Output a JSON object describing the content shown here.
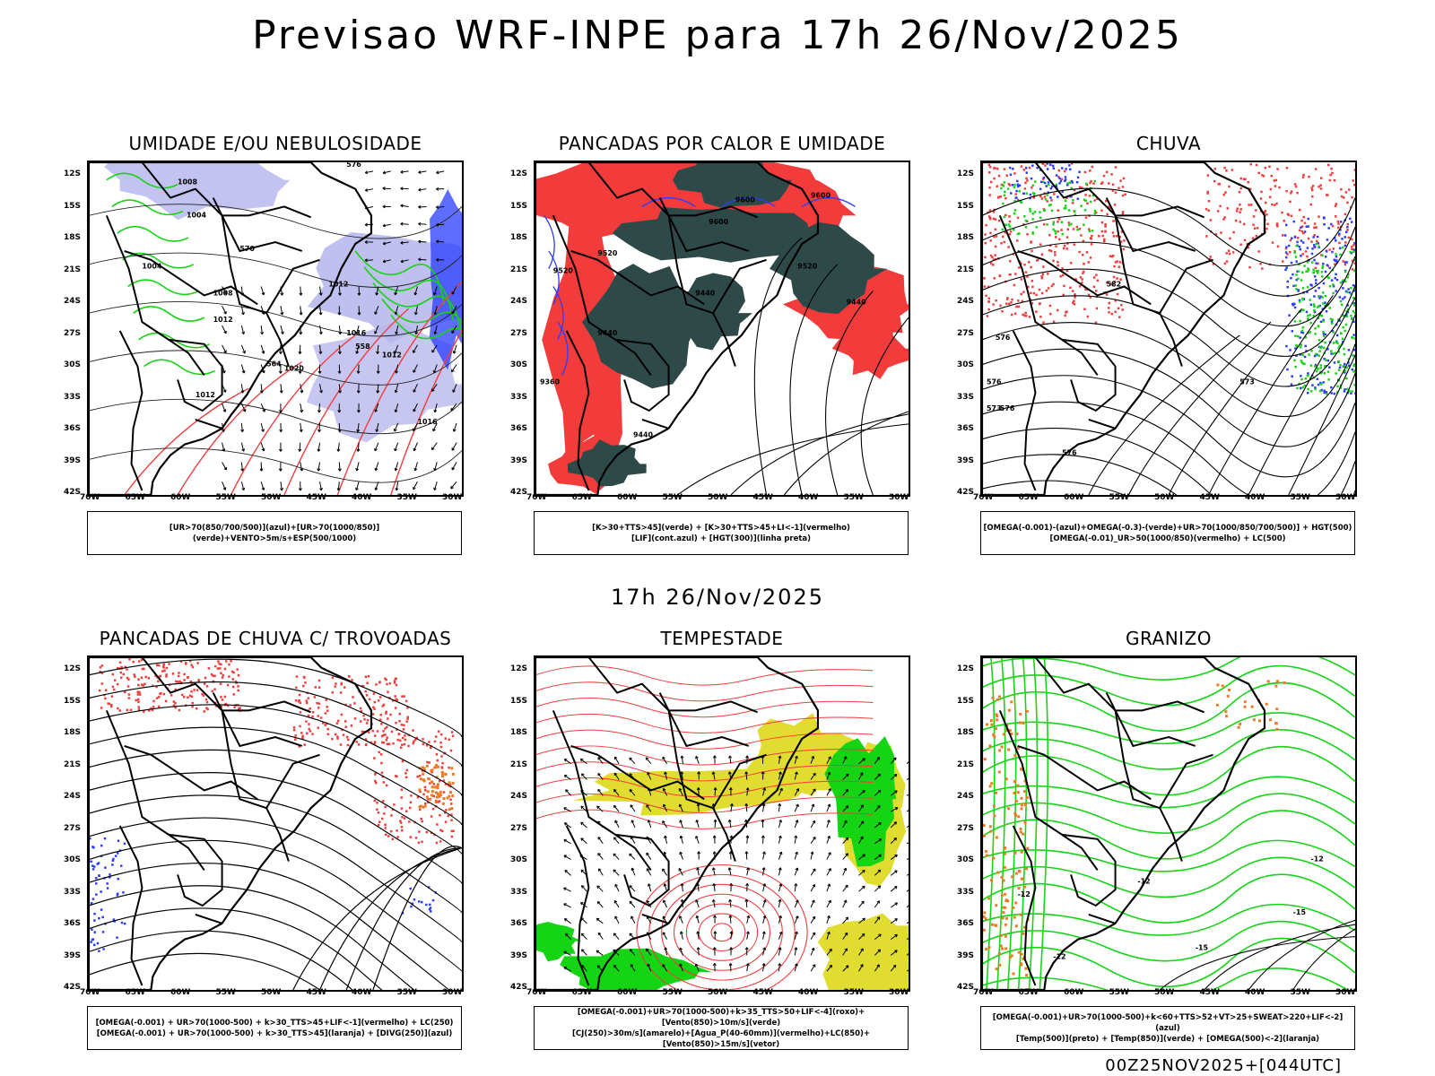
{
  "title": "Previsao WRF-INPE  para 17h 26/Nov/2025",
  "mid_time": "17h 26/Nov/2025",
  "footer": "00Z25NOV2025+[044UTC]",
  "lat_labels": [
    "12S",
    "15S",
    "18S",
    "21S",
    "24S",
    "27S",
    "30S",
    "33S",
    "36S",
    "39S",
    "42S"
  ],
  "lon_labels": [
    "70W",
    "65W",
    "60W",
    "55W",
    "50W",
    "45W",
    "40W",
    "35W",
    "30W"
  ],
  "colors": {
    "red": "#f23c3c",
    "dark_green": "#2e4a48",
    "green": "#14d414",
    "blue": "#2a3cff",
    "lavender": "#b8b8ee",
    "yellow": "#e0dc30",
    "orange": "#ef7a24",
    "black": "#000000"
  },
  "panels": [
    {
      "title": "UMIDADE E/OU NEBULOSIDADE",
      "legend": [
        "[UR>70(850/700/500)](azul)+[UR>70(1000/850)](verde)+VENTO>5m/s+ESP(500/1000)"
      ],
      "contour_labels": [
        "1008",
        "1004",
        "1012",
        "1012",
        "1016",
        "1020",
        "1012",
        "1016",
        "1004",
        "1008",
        "1012",
        "576",
        "570",
        "564",
        "558"
      ]
    },
    {
      "title": "PANCADAS POR CALOR E UMIDADE",
      "legend": [
        "[K>30+TTS>45](verde)  +  [K>30+TTS>45+LI<-1](vermelho)",
        "[LIF](cont.azul)  +  [HGT(300)](linha preta)"
      ],
      "contour_labels": [
        "9600",
        "9600",
        "9600",
        "9520",
        "9520",
        "9440",
        "9520",
        "9440",
        "9440",
        "9440",
        "9360"
      ]
    },
    {
      "title": "CHUVA",
      "legend": [
        "[OMEGA(-0.001)-(azul)+OMEGA(-0.3)-(verde)+UR>70(1000/850/700/500)]  +  HGT(500)",
        "[OMEGA(-0.01)_UR>50(1000/850)(vermelho)  +  LC(500)"
      ],
      "contour_labels": [
        "582",
        "576",
        "576",
        "576",
        "573",
        "573",
        "576"
      ]
    },
    {
      "title": "PANCADAS DE CHUVA C/ TROVOADAS",
      "legend": [
        "[OMEGA(-0.001)  +  UR>70(1000-500)  +  k>30_TTS>45+LIF<-1](vermelho)  +  LC(250)",
        "[OMEGA(-0.001)  +  UR>70(1000-500)  +  k>30_TTS>45](laranja)  +  [DIVG(250)](azul)"
      ]
    },
    {
      "title": "TEMPESTADE",
      "legend": [
        "[OMEGA(-0.001)+UR>70(1000-500)+k>35_TTS>50+LIF<-4](roxo)+[Vento(850)>10m/s](verde)",
        "[CJ(250)>30m/s](amarelo)+[Agua_P(40-60mm)](vermelho)+LC(850)+[Vento(850)>15m/s](vetor)"
      ]
    },
    {
      "title": "GRANIZO",
      "legend": [
        "[OMEGA(-0.001)+UR>70(1000-500)+k<60+TTS>52+VT>25+SWEAT>220+LIF<-2](azul)",
        "[Temp(500)](preto)  +  [Temp(850)](verde)  +  [OMEGA(500)<-2](laranja)"
      ],
      "contour_labels": [
        "-12",
        "-12",
        "-15",
        "-12",
        "-15",
        "-12"
      ]
    }
  ]
}
